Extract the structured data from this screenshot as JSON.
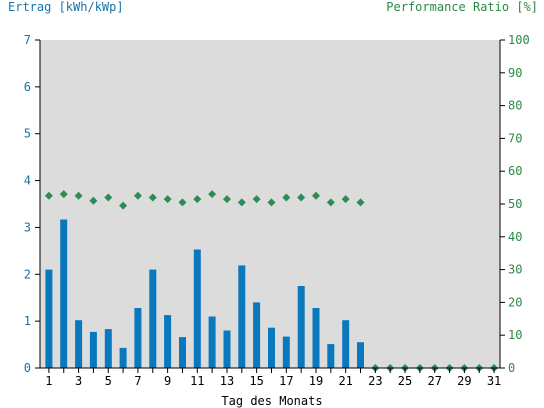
{
  "left_axis_title": "Ertrag [kWh/kWp]",
  "right_axis_title": "Performance Ratio [%]",
  "x_axis_title": "Tag des Monats",
  "colors": {
    "bar": "#0a78bd",
    "pr": "#2e8b57",
    "left_axis": "#1a73a8",
    "right_axis": "#2a8a45",
    "plot_bg": "#dcdcdc"
  },
  "chart_data": {
    "type": "bar",
    "title": "",
    "xlabel": "Tag des Monats",
    "ylabel": "Ertrag [kWh/kWp]",
    "y2label": "Performance Ratio [%]",
    "ylim": [
      0,
      7
    ],
    "y2lim": [
      0,
      100
    ],
    "grid": false,
    "categories": [
      1,
      2,
      3,
      4,
      5,
      6,
      7,
      8,
      9,
      10,
      11,
      12,
      13,
      14,
      15,
      16,
      17,
      18,
      19,
      20,
      21,
      22,
      23,
      24,
      25,
      26,
      27,
      28,
      29,
      30,
      31
    ],
    "x_tick_labels": [
      "1",
      "3",
      "5",
      "7",
      "9",
      "11",
      "13",
      "15",
      "17",
      "19",
      "21",
      "23",
      "25",
      "27",
      "29",
      "31"
    ],
    "y_tick_labels": [
      "0",
      "1",
      "2",
      "3",
      "4",
      "5",
      "6",
      "7"
    ],
    "y2_tick_labels": [
      "0",
      "10",
      "20",
      "30",
      "40",
      "50",
      "60",
      "70",
      "80",
      "90",
      "100"
    ],
    "series": [
      {
        "name": "Ertrag",
        "type": "bar",
        "axis": "left",
        "values": [
          2.1,
          3.17,
          1.02,
          0.77,
          0.83,
          0.43,
          1.28,
          2.1,
          1.13,
          0.66,
          2.53,
          1.1,
          0.8,
          2.19,
          1.4,
          0.86,
          0.67,
          1.75,
          1.28,
          0.51,
          1.02,
          0.55,
          0,
          0,
          0,
          0,
          0,
          0,
          0,
          0,
          0
        ]
      },
      {
        "name": "Performance Ratio",
        "type": "scatter",
        "axis": "right",
        "marker": "diamond",
        "values": [
          52.5,
          53,
          52.5,
          51,
          52,
          49.5,
          52.5,
          52,
          51.5,
          50.5,
          51.5,
          53,
          51.5,
          50.5,
          51.5,
          50.5,
          52,
          52,
          52.5,
          50.5,
          51.5,
          50.5,
          0,
          0,
          0,
          0,
          0,
          0,
          0,
          0,
          0
        ]
      }
    ]
  }
}
